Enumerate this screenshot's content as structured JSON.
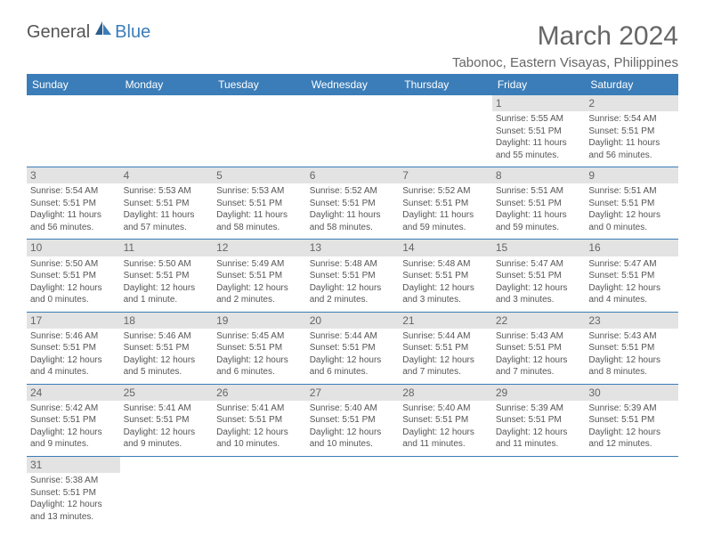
{
  "logo": {
    "general": "General",
    "blue": "Blue"
  },
  "title": "March 2024",
  "location": "Tabonoc, Eastern Visayas, Philippines",
  "colors": {
    "header_bg": "#3b7db8",
    "header_text": "#ffffff",
    "daynum_bg": "#e3e3e3",
    "cell_border": "#3b7db8",
    "text": "#555555",
    "title_text": "#666666",
    "background": "#ffffff"
  },
  "typography": {
    "title_fontsize": 30,
    "location_fontsize": 15,
    "dayheader_fontsize": 12,
    "daynum_fontsize": 12,
    "cell_fontsize": 10
  },
  "day_headers": [
    "Sunday",
    "Monday",
    "Tuesday",
    "Wednesday",
    "Thursday",
    "Friday",
    "Saturday"
  ],
  "weeks": [
    [
      {
        "n": "",
        "sr": "",
        "ss": "",
        "dl": ""
      },
      {
        "n": "",
        "sr": "",
        "ss": "",
        "dl": ""
      },
      {
        "n": "",
        "sr": "",
        "ss": "",
        "dl": ""
      },
      {
        "n": "",
        "sr": "",
        "ss": "",
        "dl": ""
      },
      {
        "n": "",
        "sr": "",
        "ss": "",
        "dl": ""
      },
      {
        "n": "1",
        "sr": "Sunrise: 5:55 AM",
        "ss": "Sunset: 5:51 PM",
        "dl": "Daylight: 11 hours and 55 minutes."
      },
      {
        "n": "2",
        "sr": "Sunrise: 5:54 AM",
        "ss": "Sunset: 5:51 PM",
        "dl": "Daylight: 11 hours and 56 minutes."
      }
    ],
    [
      {
        "n": "3",
        "sr": "Sunrise: 5:54 AM",
        "ss": "Sunset: 5:51 PM",
        "dl": "Daylight: 11 hours and 56 minutes."
      },
      {
        "n": "4",
        "sr": "Sunrise: 5:53 AM",
        "ss": "Sunset: 5:51 PM",
        "dl": "Daylight: 11 hours and 57 minutes."
      },
      {
        "n": "5",
        "sr": "Sunrise: 5:53 AM",
        "ss": "Sunset: 5:51 PM",
        "dl": "Daylight: 11 hours and 58 minutes."
      },
      {
        "n": "6",
        "sr": "Sunrise: 5:52 AM",
        "ss": "Sunset: 5:51 PM",
        "dl": "Daylight: 11 hours and 58 minutes."
      },
      {
        "n": "7",
        "sr": "Sunrise: 5:52 AM",
        "ss": "Sunset: 5:51 PM",
        "dl": "Daylight: 11 hours and 59 minutes."
      },
      {
        "n": "8",
        "sr": "Sunrise: 5:51 AM",
        "ss": "Sunset: 5:51 PM",
        "dl": "Daylight: 11 hours and 59 minutes."
      },
      {
        "n": "9",
        "sr": "Sunrise: 5:51 AM",
        "ss": "Sunset: 5:51 PM",
        "dl": "Daylight: 12 hours and 0 minutes."
      }
    ],
    [
      {
        "n": "10",
        "sr": "Sunrise: 5:50 AM",
        "ss": "Sunset: 5:51 PM",
        "dl": "Daylight: 12 hours and 0 minutes."
      },
      {
        "n": "11",
        "sr": "Sunrise: 5:50 AM",
        "ss": "Sunset: 5:51 PM",
        "dl": "Daylight: 12 hours and 1 minute."
      },
      {
        "n": "12",
        "sr": "Sunrise: 5:49 AM",
        "ss": "Sunset: 5:51 PM",
        "dl": "Daylight: 12 hours and 2 minutes."
      },
      {
        "n": "13",
        "sr": "Sunrise: 5:48 AM",
        "ss": "Sunset: 5:51 PM",
        "dl": "Daylight: 12 hours and 2 minutes."
      },
      {
        "n": "14",
        "sr": "Sunrise: 5:48 AM",
        "ss": "Sunset: 5:51 PM",
        "dl": "Daylight: 12 hours and 3 minutes."
      },
      {
        "n": "15",
        "sr": "Sunrise: 5:47 AM",
        "ss": "Sunset: 5:51 PM",
        "dl": "Daylight: 12 hours and 3 minutes."
      },
      {
        "n": "16",
        "sr": "Sunrise: 5:47 AM",
        "ss": "Sunset: 5:51 PM",
        "dl": "Daylight: 12 hours and 4 minutes."
      }
    ],
    [
      {
        "n": "17",
        "sr": "Sunrise: 5:46 AM",
        "ss": "Sunset: 5:51 PM",
        "dl": "Daylight: 12 hours and 4 minutes."
      },
      {
        "n": "18",
        "sr": "Sunrise: 5:46 AM",
        "ss": "Sunset: 5:51 PM",
        "dl": "Daylight: 12 hours and 5 minutes."
      },
      {
        "n": "19",
        "sr": "Sunrise: 5:45 AM",
        "ss": "Sunset: 5:51 PM",
        "dl": "Daylight: 12 hours and 6 minutes."
      },
      {
        "n": "20",
        "sr": "Sunrise: 5:44 AM",
        "ss": "Sunset: 5:51 PM",
        "dl": "Daylight: 12 hours and 6 minutes."
      },
      {
        "n": "21",
        "sr": "Sunrise: 5:44 AM",
        "ss": "Sunset: 5:51 PM",
        "dl": "Daylight: 12 hours and 7 minutes."
      },
      {
        "n": "22",
        "sr": "Sunrise: 5:43 AM",
        "ss": "Sunset: 5:51 PM",
        "dl": "Daylight: 12 hours and 7 minutes."
      },
      {
        "n": "23",
        "sr": "Sunrise: 5:43 AM",
        "ss": "Sunset: 5:51 PM",
        "dl": "Daylight: 12 hours and 8 minutes."
      }
    ],
    [
      {
        "n": "24",
        "sr": "Sunrise: 5:42 AM",
        "ss": "Sunset: 5:51 PM",
        "dl": "Daylight: 12 hours and 9 minutes."
      },
      {
        "n": "25",
        "sr": "Sunrise: 5:41 AM",
        "ss": "Sunset: 5:51 PM",
        "dl": "Daylight: 12 hours and 9 minutes."
      },
      {
        "n": "26",
        "sr": "Sunrise: 5:41 AM",
        "ss": "Sunset: 5:51 PM",
        "dl": "Daylight: 12 hours and 10 minutes."
      },
      {
        "n": "27",
        "sr": "Sunrise: 5:40 AM",
        "ss": "Sunset: 5:51 PM",
        "dl": "Daylight: 12 hours and 10 minutes."
      },
      {
        "n": "28",
        "sr": "Sunrise: 5:40 AM",
        "ss": "Sunset: 5:51 PM",
        "dl": "Daylight: 12 hours and 11 minutes."
      },
      {
        "n": "29",
        "sr": "Sunrise: 5:39 AM",
        "ss": "Sunset: 5:51 PM",
        "dl": "Daylight: 12 hours and 11 minutes."
      },
      {
        "n": "30",
        "sr": "Sunrise: 5:39 AM",
        "ss": "Sunset: 5:51 PM",
        "dl": "Daylight: 12 hours and 12 minutes."
      }
    ],
    [
      {
        "n": "31",
        "sr": "Sunrise: 5:38 AM",
        "ss": "Sunset: 5:51 PM",
        "dl": "Daylight: 12 hours and 13 minutes."
      },
      {
        "n": "",
        "sr": "",
        "ss": "",
        "dl": ""
      },
      {
        "n": "",
        "sr": "",
        "ss": "",
        "dl": ""
      },
      {
        "n": "",
        "sr": "",
        "ss": "",
        "dl": ""
      },
      {
        "n": "",
        "sr": "",
        "ss": "",
        "dl": ""
      },
      {
        "n": "",
        "sr": "",
        "ss": "",
        "dl": ""
      },
      {
        "n": "",
        "sr": "",
        "ss": "",
        "dl": ""
      }
    ]
  ]
}
